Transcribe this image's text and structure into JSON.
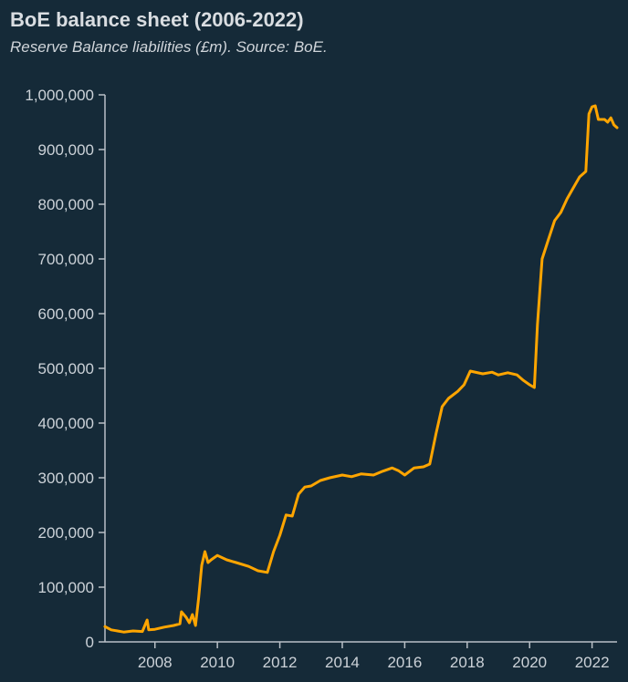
{
  "chart_data": {
    "type": "line",
    "title": "BoE balance sheet (2006-2022)",
    "subtitle": "Reserve Balance liabilities (£m). Source: BoE.",
    "xlabel": "",
    "ylabel": "",
    "xlim": [
      2006.4,
      2022.8
    ],
    "ylim": [
      0,
      1000000
    ],
    "grid": false,
    "line_color": "#ffa500",
    "background": "#152a38",
    "x_ticks": [
      2008,
      2010,
      2012,
      2014,
      2016,
      2018,
      2020,
      2022
    ],
    "x_tick_labels": [
      "2008",
      "2010",
      "2012",
      "2014",
      "2016",
      "2018",
      "2020",
      "2022"
    ],
    "y_ticks": [
      0,
      100000,
      200000,
      300000,
      400000,
      500000,
      600000,
      700000,
      800000,
      900000,
      1000000
    ],
    "y_tick_labels": [
      "0",
      "100,000",
      "200,000",
      "300,000",
      "400,000",
      "500,000",
      "600,000",
      "700,000",
      "800,000",
      "900,000",
      "1,000,000"
    ],
    "series": [
      {
        "x": [
          2006.4,
          2006.6,
          2006.8,
          2007.0,
          2007.3,
          2007.6,
          2007.75,
          2007.8,
          2008.0,
          2008.3,
          2008.6,
          2008.8,
          2008.85,
          2009.0,
          2009.1,
          2009.2,
          2009.3,
          2009.4,
          2009.5,
          2009.6,
          2009.7,
          2009.8,
          2010.0,
          2010.3,
          2010.6,
          2011.0,
          2011.3,
          2011.6,
          2011.8,
          2012.0,
          2012.2,
          2012.4,
          2012.6,
          2012.8,
          2013.0,
          2013.3,
          2013.6,
          2014.0,
          2014.3,
          2014.6,
          2015.0,
          2015.3,
          2015.6,
          2015.8,
          2016.0,
          2016.3,
          2016.6,
          2016.8,
          2017.0,
          2017.2,
          2017.4,
          2017.7,
          2017.9,
          2018.1,
          2018.5,
          2018.8,
          2019.0,
          2019.3,
          2019.6,
          2019.8,
          2020.0,
          2020.15,
          2020.25,
          2020.4,
          2020.6,
          2020.8,
          2021.0,
          2021.2,
          2021.4,
          2021.6,
          2021.8,
          2021.9,
          2022.0,
          2022.1,
          2022.2,
          2022.4,
          2022.5,
          2022.6,
          2022.7,
          2022.8
        ],
        "values": [
          28000,
          22000,
          20000,
          18000,
          20000,
          19000,
          40000,
          22000,
          23000,
          27000,
          30000,
          33000,
          55000,
          45000,
          35000,
          50000,
          30000,
          80000,
          140000,
          165000,
          145000,
          150000,
          158000,
          150000,
          145000,
          138000,
          130000,
          127000,
          165000,
          195000,
          232000,
          230000,
          270000,
          283000,
          285000,
          295000,
          300000,
          305000,
          302000,
          307000,
          305000,
          312000,
          318000,
          313000,
          305000,
          318000,
          320000,
          325000,
          380000,
          430000,
          445000,
          458000,
          470000,
          495000,
          490000,
          493000,
          488000,
          492000,
          488000,
          478000,
          470000,
          465000,
          580000,
          700000,
          735000,
          770000,
          785000,
          810000,
          830000,
          850000,
          860000,
          965000,
          978000,
          980000,
          955000,
          955000,
          950000,
          958000,
          945000,
          940000
        ]
      }
    ]
  }
}
